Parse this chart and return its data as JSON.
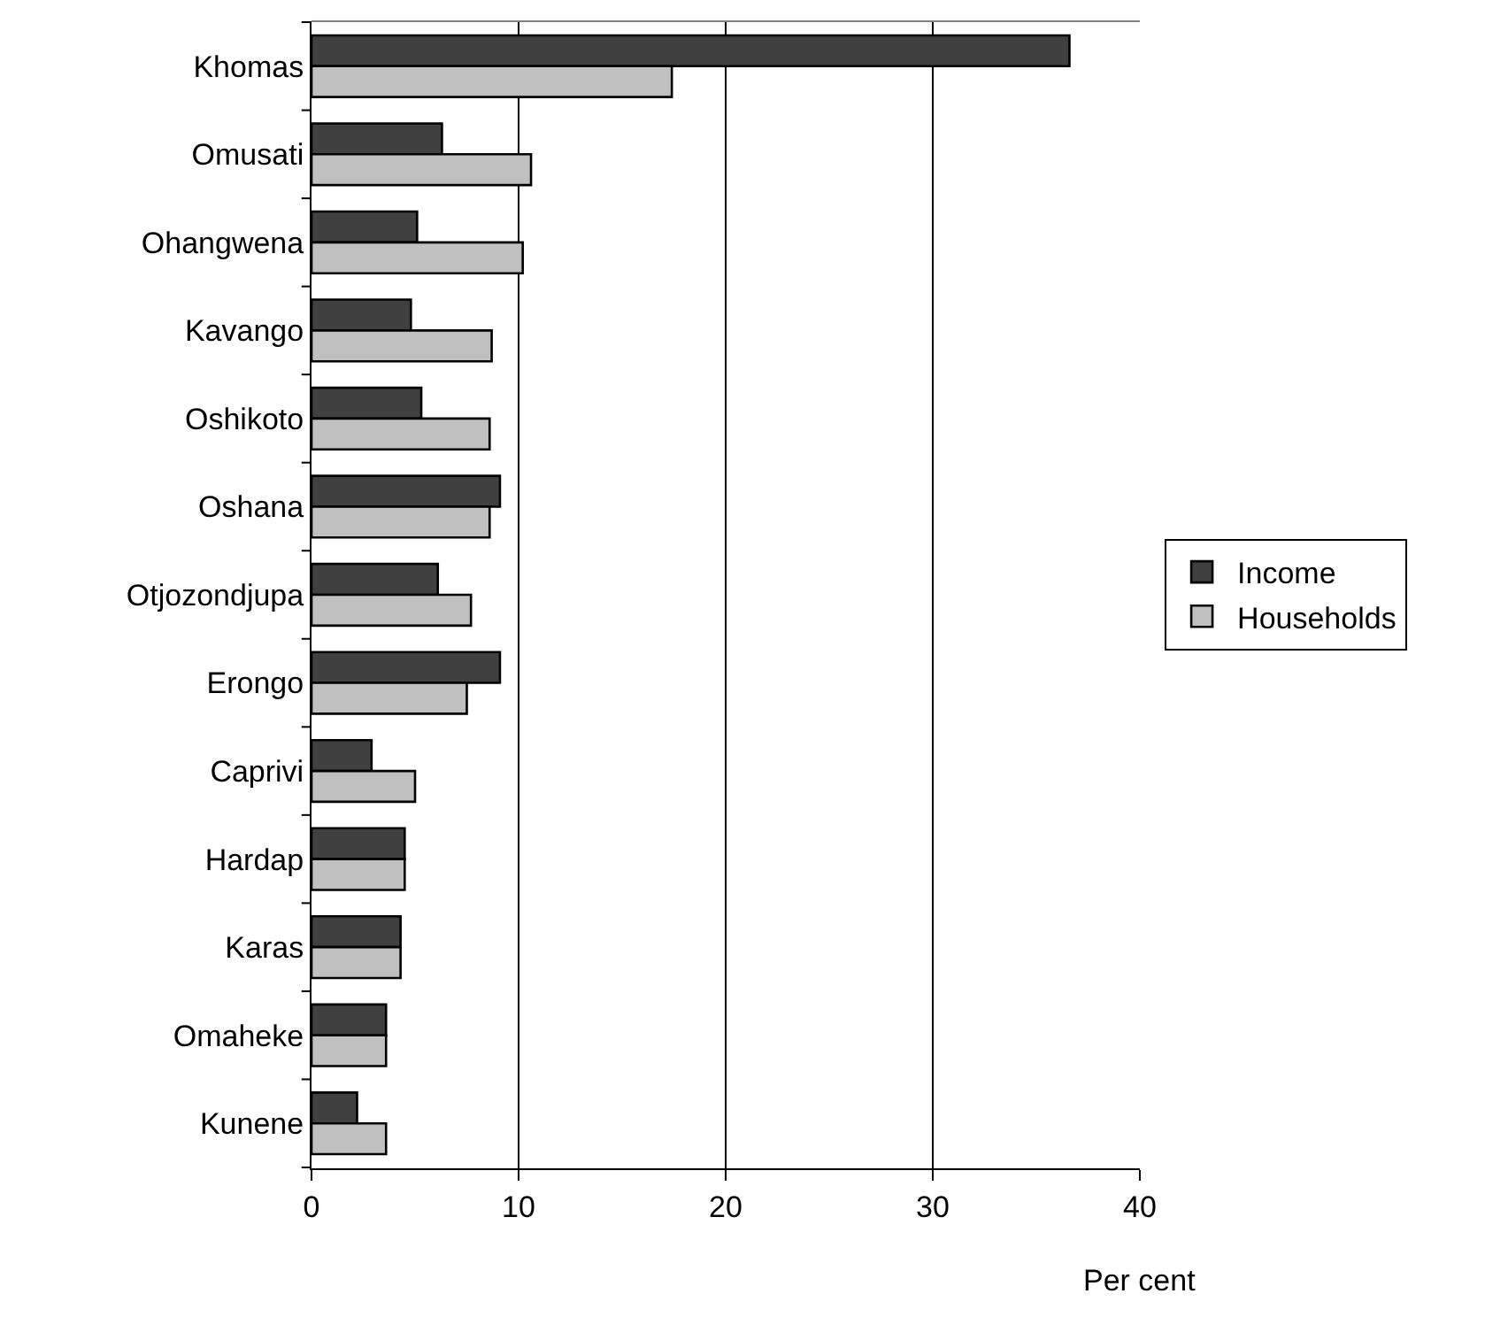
{
  "chart_data": {
    "type": "bar",
    "orientation": "horizontal",
    "xlabel": "Per cent",
    "categories": [
      "Khomas",
      "Omusati",
      "Ohangwena",
      "Kavango",
      "Oshikoto",
      "Oshana",
      "Otjozondjupa",
      "Erongo",
      "Caprivi",
      "Hardap",
      "Karas",
      "Omaheke",
      "Kunene"
    ],
    "series": [
      {
        "name": "Income",
        "color": "#404040",
        "values": [
          36.6,
          6.3,
          5.1,
          4.8,
          5.3,
          9.1,
          6.1,
          9.1,
          2.9,
          4.5,
          4.3,
          3.6,
          2.2
        ]
      },
      {
        "name": "Households",
        "color": "#c0c0c0",
        "values": [
          17.4,
          10.6,
          10.2,
          8.7,
          8.6,
          8.6,
          7.7,
          7.5,
          5.0,
          4.5,
          4.3,
          3.6,
          3.6
        ]
      }
    ],
    "xlim": [
      0,
      40
    ],
    "xticks": [
      0,
      10,
      20,
      30,
      40
    ],
    "grid": "x",
    "legend": "right"
  }
}
